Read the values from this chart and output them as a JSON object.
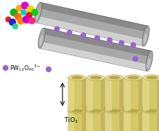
{
  "tube_color_main": "#a8a8a8",
  "tube_color_highlight": "#e0e0e0",
  "tube_color_shadow": "#505050",
  "tio2_face": "#d4c96a",
  "tio2_top": "#e8dc90",
  "tio2_dark": "#b8a848",
  "tio2_edge": "#908030",
  "tio2_base": "#e0e0d8",
  "tio2_base_edge": "#b0b0a0",
  "purple": "#9966cc",
  "cluster_colors": [
    "#dd2222",
    "#22aa22",
    "#ffaa00",
    "#dd00dd",
    "#dddd00",
    "#2222dd",
    "#ff6600",
    "#00cccc",
    "#ee1111",
    "#11cc11",
    "#ff8800",
    "#cc00cc",
    "#ff2288",
    "#22dd88"
  ],
  "fig_width": 2.29,
  "fig_height": 1.89,
  "dpi": 100
}
